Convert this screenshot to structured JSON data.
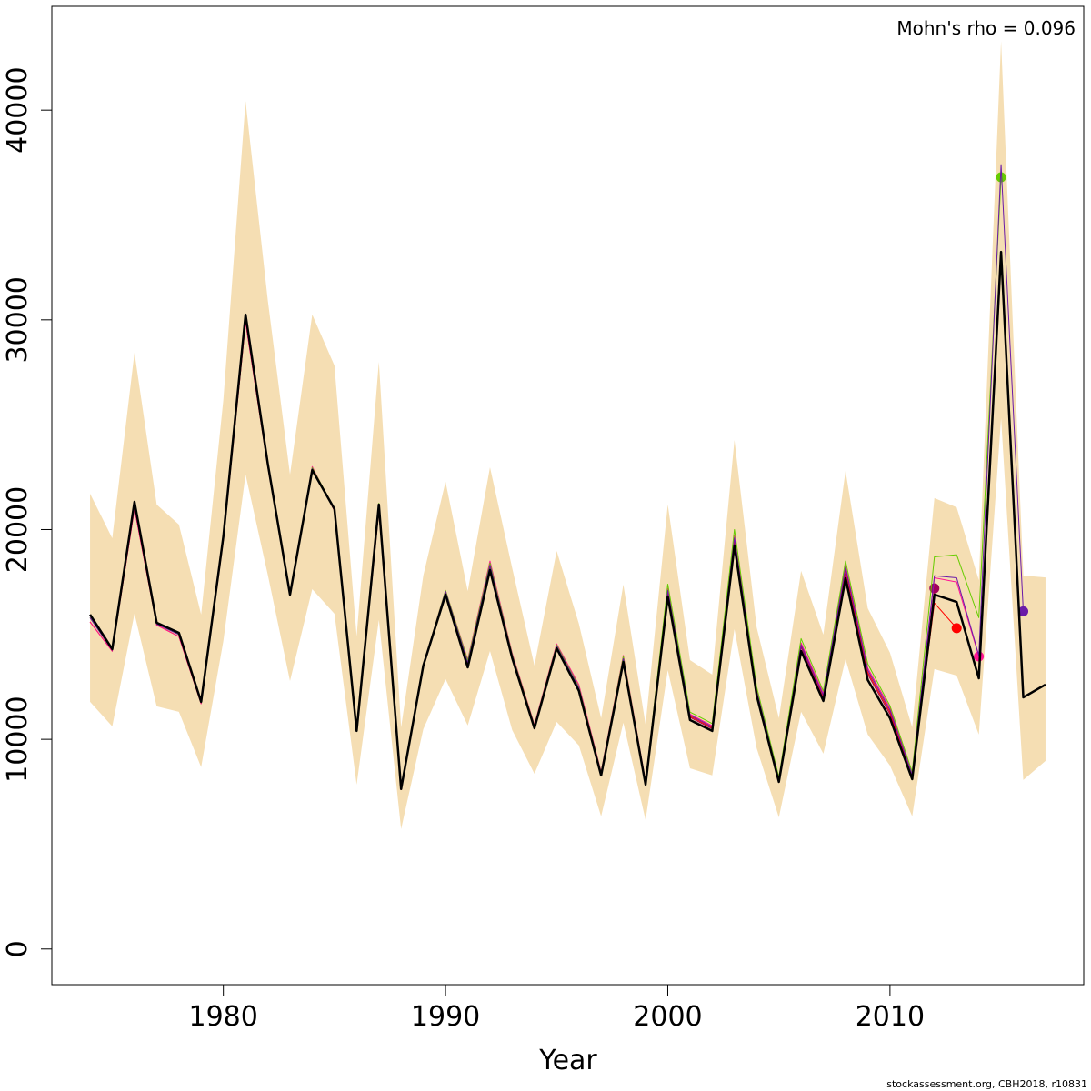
{
  "chart_data": {
    "type": "line",
    "annotation": "Mohn's rho = 0.096",
    "footer": "stockassessment.org, CBH2018, r10831",
    "x_label": "Year",
    "x": [
      1974,
      1975,
      1976,
      1977,
      1978,
      1979,
      1980,
      1981,
      1982,
      1983,
      1984,
      1985,
      1986,
      1987,
      1988,
      1989,
      1990,
      1991,
      1992,
      1993,
      1994,
      1995,
      1996,
      1997,
      1998,
      1999,
      2000,
      2001,
      2002,
      2003,
      2004,
      2005,
      2006,
      2007,
      2008,
      2009,
      2010,
      2011,
      2012,
      2013,
      2014,
      2015,
      2016,
      2017
    ],
    "xlim": [
      1972.28,
      2018.72
    ],
    "xticks": [
      1980,
      1990,
      2000,
      2010
    ],
    "ylim": [
      -1700,
      44950
    ],
    "yticks": [
      0,
      10000,
      20000,
      30000,
      40000
    ],
    "band": {
      "color": "#f5deb3",
      "upper": [
        21710,
        19590,
        28430,
        21190,
        20240,
        15950,
        26180,
        40430,
        30940,
        22620,
        30250,
        27820,
        14910,
        28000,
        10570,
        17810,
        22280,
        17070,
        22970,
        18160,
        13520,
        18980,
        15510,
        11010,
        17380,
        10700,
        21190,
        13780,
        13090,
        24270,
        15340,
        11010,
        18030,
        14990,
        22800,
        16250,
        14130,
        10570,
        21500,
        21060,
        17590,
        43290,
        17810,
        17720
      ],
      "lower": [
        11790,
        10620,
        15990,
        11570,
        11310,
        8670,
        14690,
        22620,
        17850,
        12780,
        17160,
        15990,
        7840,
        15690,
        5720,
        10490,
        12870,
        10660,
        14210,
        10440,
        8360,
        10830,
        9710,
        6330,
        10790,
        6150,
        13300,
        8620,
        8280,
        15250,
        9580,
        6280,
        11310,
        9320,
        13820,
        10230,
        8750,
        6330,
        13350,
        13040,
        10230,
        25310,
        8060,
        8970
      ]
    },
    "series": [
      {
        "color": "#a0005a",
        "marker_last": true,
        "line_width": 1,
        "values": [
          15800,
          14250,
          21200,
          15500,
          15000,
          11750,
          19600,
          30100,
          23100,
          16900,
          22900,
          20950,
          10450,
          21000,
          7650,
          13550,
          17000,
          13600,
          18200,
          13950,
          10600,
          14450,
          12400,
          8350,
          13850,
          7900,
          17000,
          11050,
          10500,
          19400,
          12200,
          8050,
          14400,
          11950,
          17900,
          13100,
          11200,
          8200,
          17200,
          null,
          null,
          null,
          null,
          null
        ]
      },
      {
        "color": "#ff0000",
        "marker_last": true,
        "line_width": 1,
        "values": [
          15600,
          14200,
          21000,
          15450,
          14900,
          11700,
          19500,
          29900,
          23000,
          16850,
          22950,
          20900,
          10400,
          20900,
          7600,
          13500,
          17000,
          13700,
          18300,
          14000,
          10650,
          14500,
          12500,
          8400,
          13900,
          7950,
          17100,
          11100,
          10550,
          19500,
          12300,
          8100,
          14500,
          12050,
          18100,
          13200,
          11300,
          8250,
          16500,
          15300,
          null,
          null,
          null,
          null
        ]
      },
      {
        "color": "#ff1493",
        "marker_last": true,
        "line_width": 1,
        "values": [
          15600,
          14200,
          21000,
          15450,
          14900,
          11700,
          19500,
          29900,
          23000,
          16850,
          23000,
          20900,
          10400,
          20900,
          7600,
          13550,
          17100,
          13800,
          18500,
          14100,
          10700,
          14550,
          12600,
          8450,
          14000,
          8000,
          17200,
          11200,
          10650,
          19700,
          12400,
          8150,
          14600,
          12200,
          18300,
          13400,
          11500,
          8350,
          17700,
          17500,
          13950,
          null,
          null,
          null
        ]
      },
      {
        "color": "#66cc00",
        "marker_last": true,
        "line_width": 1,
        "values": [
          15800,
          14250,
          21200,
          15500,
          15000,
          11750,
          19600,
          30100,
          23100,
          16900,
          22950,
          21000,
          10450,
          21250,
          7650,
          13550,
          17100,
          13750,
          18400,
          14050,
          10650,
          14500,
          12500,
          8400,
          13950,
          7950,
          17400,
          11300,
          10750,
          20000,
          12500,
          8200,
          14800,
          12300,
          18500,
          13600,
          11600,
          8450,
          18700,
          18800,
          15800,
          36800,
          null,
          null
        ]
      },
      {
        "color": "#6a1aa8",
        "marker_last": true,
        "line_width": 1,
        "values": [
          15800,
          14250,
          21200,
          15500,
          15000,
          11750,
          19600,
          30100,
          23100,
          16900,
          22900,
          20950,
          10450,
          21100,
          7650,
          13550,
          17050,
          13650,
          18300,
          14000,
          10600,
          14450,
          12450,
          8350,
          13850,
          7900,
          17100,
          11150,
          10600,
          19600,
          12300,
          8100,
          14500,
          12100,
          18200,
          13300,
          11400,
          8300,
          17800,
          17700,
          14000,
          37400,
          16100,
          null
        ]
      },
      {
        "color": "#000000",
        "line_width": 2.5,
        "values": [
          15950,
          14300,
          21320,
          15560,
          15080,
          11790,
          19670,
          30250,
          23140,
          16900,
          22840,
          20980,
          10400,
          21190,
          7630,
          13520,
          16900,
          13430,
          18070,
          13870,
          10530,
          14340,
          12310,
          8280,
          13690,
          7840,
          16810,
          10920,
          10400,
          19240,
          12090,
          7970,
          14210,
          11830,
          17680,
          12830,
          11010,
          8100,
          16900,
          16550,
          12910,
          33240,
          12000,
          12610
        ]
      }
    ]
  }
}
